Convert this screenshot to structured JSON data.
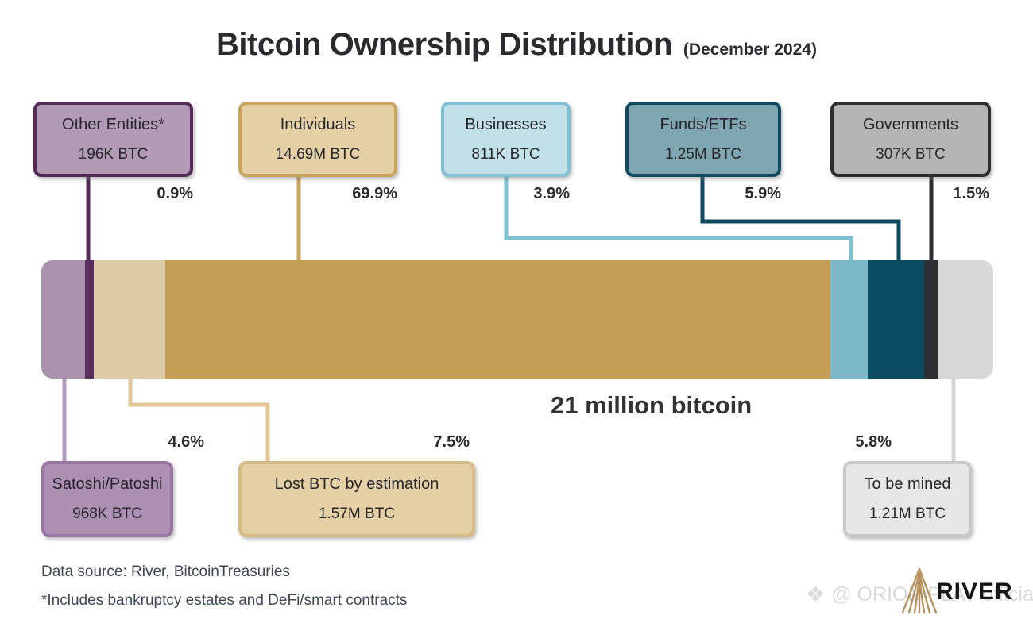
{
  "chart_data": {
    "type": "bar",
    "variant": "horizontal-stacked-single-bar",
    "title": "Bitcoin Ownership Distribution",
    "subtitle": "(December 2024)",
    "total_label": "21 million bitcoin",
    "legend_position": "callout-boxes-above-and-below-bar",
    "grid": false,
    "segments": [
      {
        "name": "Satoshi/Patoshi",
        "amount": "968K BTC",
        "percent": 4.6,
        "percent_label": "4.6%",
        "color": "#ab93ae",
        "label_position": "bottom"
      },
      {
        "name": "Other Entities*",
        "amount": "196K BTC",
        "percent": 0.9,
        "percent_label": "0.9%",
        "color": "#5a2f5e",
        "label_position": "top"
      },
      {
        "name": "Lost BTC by estimation",
        "amount": "1.57M BTC",
        "percent": 7.5,
        "percent_label": "7.5%",
        "color": "#ddcba5",
        "label_position": "bottom"
      },
      {
        "name": "Individuals",
        "amount": "14.69M BTC",
        "percent": 69.9,
        "percent_label": "69.9%",
        "color": "#c49e55",
        "label_position": "top"
      },
      {
        "name": "Businesses",
        "amount": "811K BTC",
        "percent": 3.9,
        "percent_label": "3.9%",
        "color": "#7db8c9",
        "label_position": "top"
      },
      {
        "name": "Funds/ETFs",
        "amount": "1.25M BTC",
        "percent": 5.9,
        "percent_label": "5.9%",
        "color": "#0b4c63",
        "label_position": "top"
      },
      {
        "name": "Governments",
        "amount": "307K BTC",
        "percent": 1.5,
        "percent_label": "1.5%",
        "color": "#2f2f33",
        "label_position": "top"
      },
      {
        "name": "To be mined",
        "amount": "1.21M BTC",
        "percent": 5.8,
        "percent_label": "5.8%",
        "color": "#d8d8d8",
        "label_position": "bottom"
      }
    ]
  },
  "footer": {
    "source": "Data source: River, BitcoinTreasuries",
    "note": "*Includes bankruptcy estates and DeFi/smart contracts"
  },
  "watermark": {
    "handle": "@ ORION PLAY official",
    "diamond_icon": "❖",
    "brand": "RIVER"
  }
}
